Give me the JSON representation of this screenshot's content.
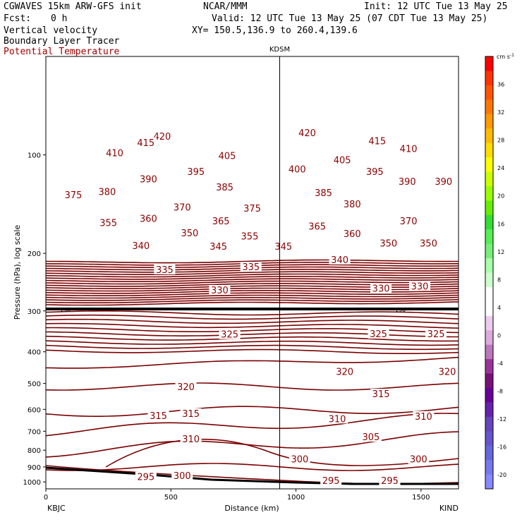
{
  "header": {
    "model": "CGWAVES 15km ARW-GFS init",
    "org": "NCAR/MMM",
    "init": "Init: 12 UTC Tue 13 May 25",
    "fcst_label": "Fcst:",
    "fcst_value": "0 h",
    "valid": "Valid: 12 UTC Tue 13 May 25 (07 CDT Tue 13 May 25)",
    "field1": "Vertical velocity",
    "xy": "XY= 150.5,136.9 to 260.4,139.6",
    "field2": "Boundary Layer Tracer",
    "field3": "Potential Temperature"
  },
  "chart_data": {
    "type": "line",
    "ylabel": "Pressure (hPa), log scale",
    "xlabel": "Distance (km)",
    "station_mid": "KDSM",
    "station_mid_km": 935,
    "station_left": "KBJC",
    "station_right": "KIND",
    "xlim": [
      0,
      1650
    ],
    "ylim": [
      1050,
      50
    ],
    "yscale": "log",
    "x_ticks": [
      0,
      500,
      1000,
      1500
    ],
    "y_ticks": [
      100,
      200,
      300,
      400,
      500,
      600,
      700,
      800,
      900,
      1000
    ],
    "tracer_label": "150",
    "colorbar": {
      "unit": "cm s",
      "unit_exp": "-1",
      "labels": [
        "36",
        "32",
        "28",
        "24",
        "20",
        "16",
        "12",
        "8",
        "4",
        "0",
        "-4",
        "-8",
        "-12",
        "-16",
        "-20"
      ],
      "colors": [
        "#ff0000",
        "#ff3300",
        "#ff5500",
        "#ff7700",
        "#ff9900",
        "#ffbb00",
        "#ffdd00",
        "#ffff00",
        "#ccff00",
        "#99ff00",
        "#66ee00",
        "#33dd33",
        "#55ee55",
        "#77ee77",
        "#aaffaa",
        "#ccffcc",
        "#ffffff",
        "#ffffff",
        "#eeccee",
        "#ddaadd",
        "#bb77bb",
        "#993399",
        "#771177",
        "#660099",
        "#6622aa",
        "#6644bb",
        "#6655cc",
        "#6666dd",
        "#7777ee",
        "#8888ff"
      ]
    },
    "isentrope_labels": [
      {
        "text": "420",
        "x": 465,
        "p": 88
      },
      {
        "text": "415",
        "x": 400,
        "p": 92
      },
      {
        "text": "410",
        "x": 275,
        "p": 99
      },
      {
        "text": "375",
        "x": 110,
        "p": 133
      },
      {
        "text": "380",
        "x": 245,
        "p": 130
      },
      {
        "text": "390",
        "x": 410,
        "p": 119
      },
      {
        "text": "395",
        "x": 600,
        "p": 113
      },
      {
        "text": "405",
        "x": 725,
        "p": 101
      },
      {
        "text": "385",
        "x": 715,
        "p": 126
      },
      {
        "text": "370",
        "x": 545,
        "p": 145
      },
      {
        "text": "375",
        "x": 825,
        "p": 146
      },
      {
        "text": "360",
        "x": 410,
        "p": 157
      },
      {
        "text": "355",
        "x": 250,
        "p": 162
      },
      {
        "text": "365",
        "x": 700,
        "p": 160
      },
      {
        "text": "350",
        "x": 575,
        "p": 174
      },
      {
        "text": "355",
        "x": 815,
        "p": 178
      },
      {
        "text": "340",
        "x": 380,
        "p": 190
      },
      {
        "text": "345",
        "x": 690,
        "p": 191
      },
      {
        "text": "345",
        "x": 950,
        "p": 191
      },
      {
        "text": "335",
        "x": 475,
        "p": 225
      },
      {
        "text": "335",
        "x": 820,
        "p": 221
      },
      {
        "text": "330",
        "x": 695,
        "p": 260
      },
      {
        "text": "325",
        "x": 735,
        "p": 355
      },
      {
        "text": "320",
        "x": 560,
        "p": 513
      },
      {
        "text": "315",
        "x": 450,
        "p": 630
      },
      {
        "text": "315",
        "x": 580,
        "p": 620
      },
      {
        "text": "310",
        "x": 580,
        "p": 742
      },
      {
        "text": "300",
        "x": 545,
        "p": 960
      },
      {
        "text": "295",
        "x": 400,
        "p": 968
      },
      {
        "text": "420",
        "x": 1045,
        "p": 86
      },
      {
        "text": "415",
        "x": 1325,
        "p": 91
      },
      {
        "text": "410",
        "x": 1450,
        "p": 96
      },
      {
        "text": "400",
        "x": 1005,
        "p": 111
      },
      {
        "text": "405",
        "x": 1185,
        "p": 104
      },
      {
        "text": "395",
        "x": 1315,
        "p": 113
      },
      {
        "text": "390",
        "x": 1445,
        "p": 121
      },
      {
        "text": "390",
        "x": 1590,
        "p": 121
      },
      {
        "text": "385",
        "x": 1110,
        "p": 131
      },
      {
        "text": "380",
        "x": 1225,
        "p": 142
      },
      {
        "text": "370",
        "x": 1450,
        "p": 160
      },
      {
        "text": "365",
        "x": 1085,
        "p": 166
      },
      {
        "text": "360",
        "x": 1225,
        "p": 175
      },
      {
        "text": "350",
        "x": 1370,
        "p": 187
      },
      {
        "text": "350",
        "x": 1530,
        "p": 187
      },
      {
        "text": "340",
        "x": 1175,
        "p": 210
      },
      {
        "text": "330",
        "x": 1340,
        "p": 257
      },
      {
        "text": "330",
        "x": 1495,
        "p": 253
      },
      {
        "text": "325",
        "x": 1330,
        "p": 354
      },
      {
        "text": "325",
        "x": 1560,
        "p": 354
      },
      {
        "text": "320",
        "x": 1195,
        "p": 462
      },
      {
        "text": "320",
        "x": 1605,
        "p": 462
      },
      {
        "text": "315",
        "x": 1340,
        "p": 540
      },
      {
        "text": "310",
        "x": 1165,
        "p": 643
      },
      {
        "text": "310",
        "x": 1510,
        "p": 632
      },
      {
        "text": "305",
        "x": 1300,
        "p": 731
      },
      {
        "text": "300",
        "x": 1015,
        "p": 854
      },
      {
        "text": "300",
        "x": 1490,
        "p": 854
      },
      {
        "text": "295",
        "x": 1140,
        "p": 993
      },
      {
        "text": "295",
        "x": 1375,
        "p": 993
      }
    ]
  }
}
